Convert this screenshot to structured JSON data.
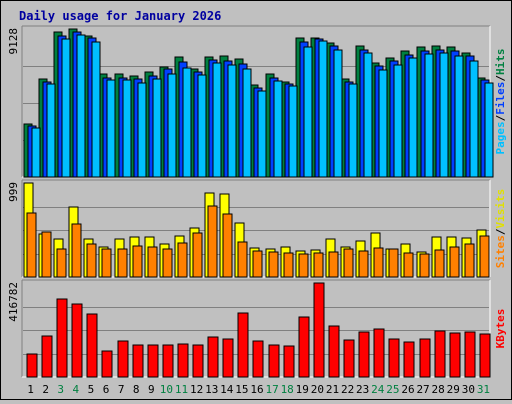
{
  "chart_data": {
    "type": "bar",
    "title": "Daily usage for January 2026",
    "categories": [
      "1",
      "2",
      "3",
      "4",
      "5",
      "6",
      "7",
      "8",
      "9",
      "10",
      "11",
      "12",
      "13",
      "14",
      "15",
      "16",
      "17",
      "18",
      "19",
      "20",
      "21",
      "22",
      "23",
      "24",
      "25",
      "26",
      "27",
      "28",
      "29",
      "30",
      "31"
    ],
    "weekend_days": [
      "3",
      "4",
      "10",
      "11",
      "17",
      "18",
      "24",
      "25",
      "31"
    ],
    "panels": [
      {
        "name": "hits-files-pages",
        "ymax_label": "9128",
        "right_labels": [
          {
            "text": "Hits",
            "color": "#008040"
          },
          {
            "text": "/",
            "color": "#000000"
          },
          {
            "text": "Files",
            "color": "#0040ff"
          },
          {
            "text": "/",
            "color": "#000000"
          },
          {
            "text": "Pages",
            "color": "#00c0ff"
          }
        ],
        "series": [
          {
            "name": "Hits",
            "color": "#008040",
            "values": [
              3160,
              5840,
              8610,
              8780,
              8360,
              6110,
              6110,
              5970,
              6240,
              6530,
              7120,
              6380,
              7120,
              7150,
              7010,
              5480,
              6110,
              5640,
              8260,
              8260,
              7920,
              5830,
              7790,
              6790,
              7070,
              7460,
              7700,
              7790,
              7700,
              7360,
              5900
            ]
          },
          {
            "name": "Files",
            "color": "#0040ff",
            "values": [
              3000,
              5650,
              8370,
              8600,
              8260,
              5900,
              5900,
              5800,
              6000,
              6400,
              6800,
              6200,
              6950,
              6900,
              6700,
              5300,
              5900,
              5530,
              8000,
              8200,
              7750,
              5660,
              7550,
              6600,
              6900,
              7250,
              7500,
              7550,
              7460,
              7160,
              5740
            ]
          },
          {
            "name": "Pages",
            "color": "#00c0ff",
            "values": [
              2900,
              5530,
              8190,
              8400,
              8020,
              5740,
              5740,
              5580,
              5830,
              6120,
              6490,
              6060,
              6750,
              6630,
              6380,
              5100,
              5710,
              5390,
              7700,
              8070,
              7540,
              5520,
              7340,
              6370,
              6670,
              7040,
              7290,
              7340,
              7150,
              6880,
              5550
            ]
          }
        ]
      },
      {
        "name": "visits-sites",
        "ymax_label": "999",
        "right_labels": [
          {
            "text": "Visits",
            "color": "#e0e000"
          },
          {
            "text": "/",
            "color": "#000000"
          },
          {
            "text": "Sites",
            "color": "#ff8000"
          }
        ],
        "series": [
          {
            "name": "Visits",
            "color": "#ffff00",
            "values": [
              999,
              460,
              400,
              740,
              400,
              320,
              400,
              420,
              420,
              350,
              440,
              520,
              890,
              880,
              570,
              310,
              300,
              320,
              280,
              290,
              400,
              320,
              380,
              470,
              300,
              350,
              270,
              420,
              420,
              410,
              500
            ]
          },
          {
            "name": "Sites",
            "color": "#ff8000",
            "values": [
              680,
              480,
              300,
              560,
              350,
              300,
              300,
              330,
              320,
              300,
              360,
              470,
              750,
              670,
              370,
              280,
              270,
              260,
              240,
              260,
              270,
              300,
              280,
              310,
              300,
              260,
              240,
              290,
              320,
              350,
              440
            ]
          }
        ]
      },
      {
        "name": "kbytes",
        "ymax_label": "416782",
        "right_labels": [
          {
            "text": "KBytes",
            "color": "#ff0000"
          }
        ],
        "series": [
          {
            "name": "KBytes",
            "color": "#ff0000",
            "values": [
              90000,
              164000,
              310000,
              291000,
              251000,
              103000,
              144000,
              128000,
              128000,
              128000,
              133000,
              128000,
              161000,
              151000,
              255000,
              144000,
              128000,
              123000,
              241000,
              376000,
              205000,
              147000,
              178000,
              191000,
              150000,
              141000,
              151000,
              184000,
              177000,
              178000,
              173000
            ]
          }
        ]
      }
    ]
  }
}
